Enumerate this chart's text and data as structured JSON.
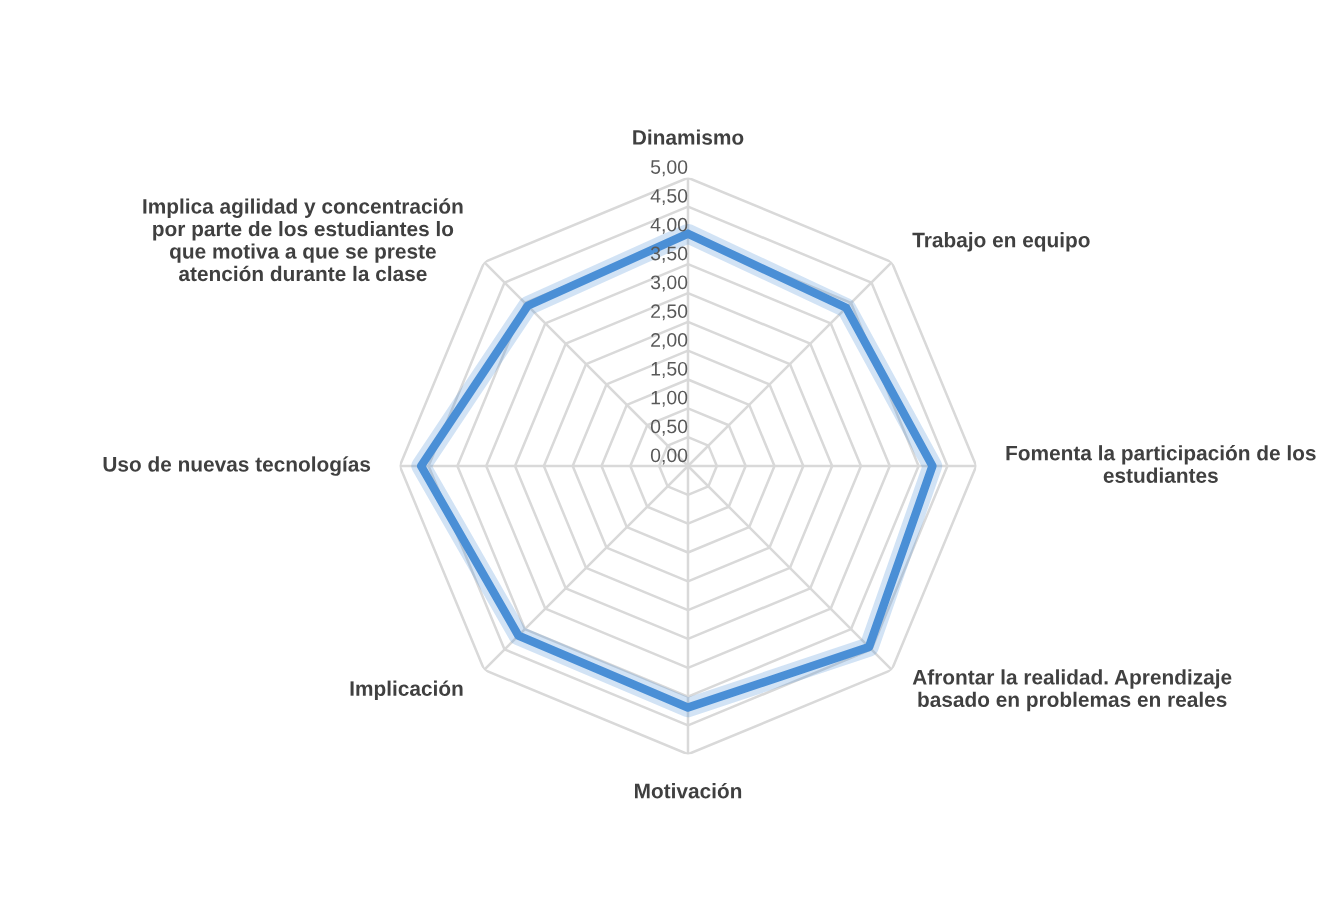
{
  "chart_data": {
    "type": "radar",
    "categories": [
      "Dinamismo",
      "Trabajo en equipo",
      "Fomenta la participación de los estudiantes",
      "Afrontar la realidad. Aprendizaje basado en problemas en reales",
      "Motivación",
      "Implicación",
      "Uso de nuevas tecnologías",
      "Implica agilidad y concentración por parte de los estudiantes lo que motiva a que se preste atención durante la clase"
    ],
    "series": [
      {
        "color": "#4a8fd6",
        "values": [
          4.03,
          3.88,
          4.24,
          4.44,
          4.19,
          4.16,
          4.63,
          3.93
        ]
      }
    ],
    "ylim": [
      0,
      5
    ],
    "yticks": [
      {
        "value": 0,
        "label": "0,00"
      },
      {
        "value": 0.5,
        "label": "0,50"
      },
      {
        "value": 1,
        "label": "1,00"
      },
      {
        "value": 1.5,
        "label": "1,50"
      },
      {
        "value": 2,
        "label": "2,00"
      },
      {
        "value": 2.5,
        "label": "2,50"
      },
      {
        "value": 3,
        "label": "3,00"
      },
      {
        "value": 3.5,
        "label": "3,50"
      },
      {
        "value": 4,
        "label": "4,00"
      },
      {
        "value": 4.5,
        "label": "4,50"
      },
      {
        "value": 5,
        "label": "5,00"
      }
    ],
    "grid": true,
    "marker": "none",
    "line_style": "solid"
  }
}
